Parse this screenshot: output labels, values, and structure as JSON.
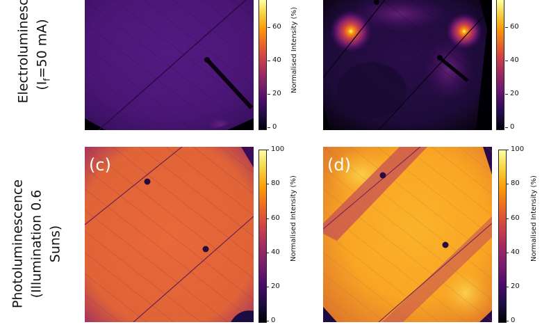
{
  "rows": [
    {
      "lines": [
        "Electroluminescence",
        "(I",
        "=50 mA)"
      ],
      "sub": "f"
    },
    {
      "lines": [
        "Photoluminescence",
        "(Illumination 0.6",
        "Suns)"
      ]
    }
  ],
  "panels": [
    {
      "letter": "",
      "scheme": "el-uniform"
    },
    {
      "letter": "",
      "scheme": "el-hotspots"
    },
    {
      "letter": "(c)",
      "scheme": "pl-uniform"
    },
    {
      "letter": "(d)",
      "scheme": "pl-bright"
    }
  ],
  "colorbar": {
    "title": "Normalised Intensity (%)",
    "ticks_top": [
      "60",
      "40",
      "20",
      "0"
    ],
    "ticks_bottom": [
      "100",
      "80",
      "60",
      "40",
      "20",
      "0"
    ]
  },
  "colors": {
    "inferno": [
      "#000004",
      "#1b0c41",
      "#4a0c6b",
      "#781c6d",
      "#a52c60",
      "#cf4446",
      "#ed6925",
      "#fb9b06",
      "#f7d13d",
      "#fcffa4"
    ]
  }
}
